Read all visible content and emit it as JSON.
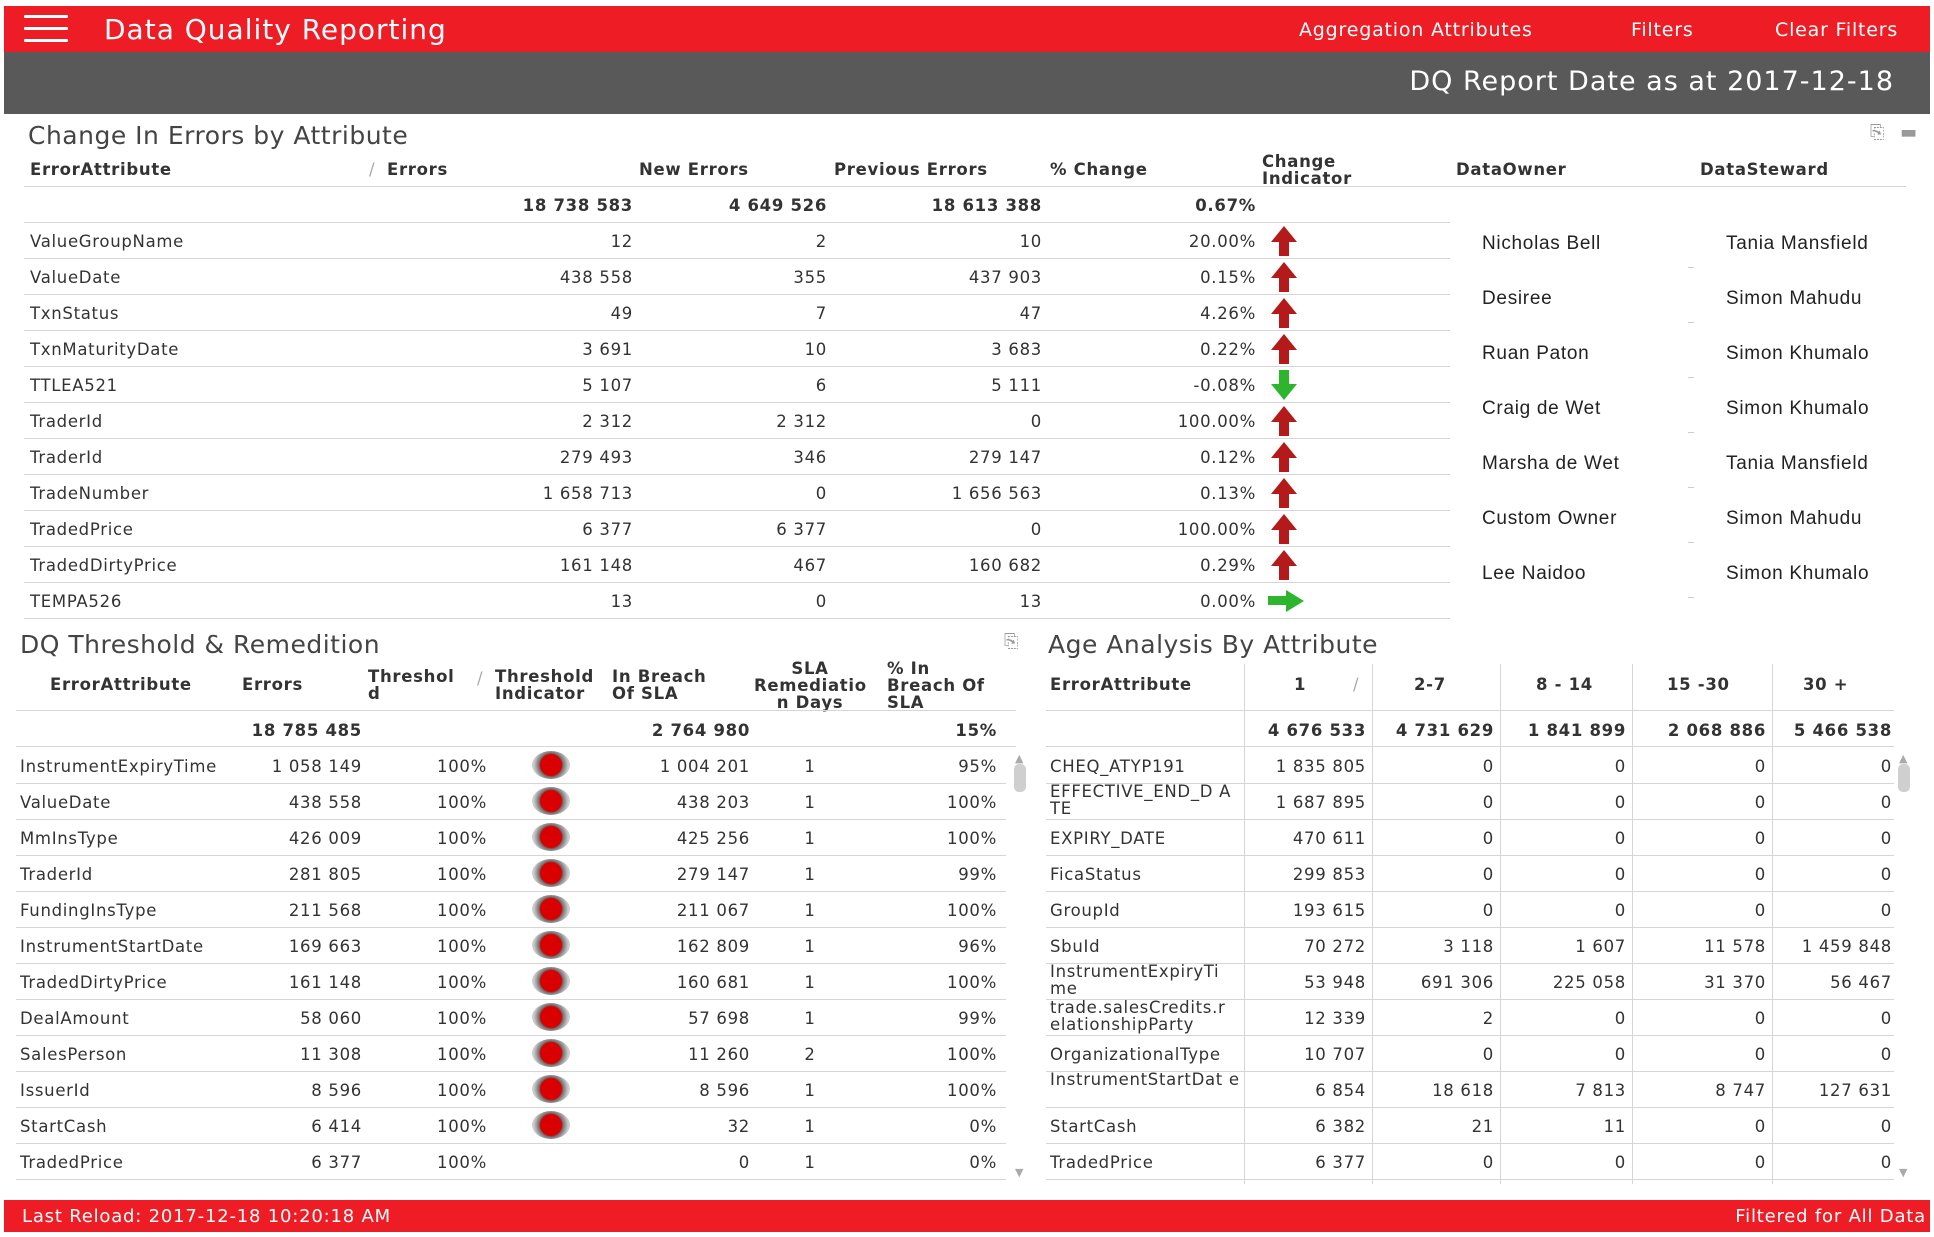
{
  "header": {
    "title": "Data Quality Reporting",
    "nav": [
      "Aggregation Attributes",
      "Filters",
      "Clear Filters"
    ],
    "report_date": "DQ Report Date as at 2017-12-18"
  },
  "change_panel": {
    "title": "Change In Errors by Attribute",
    "columns": [
      "ErrorAttribute",
      "Errors",
      "New Errors",
      "Previous Errors",
      "% Change",
      "Change Indicator",
      "DataOwner",
      "DataSteward"
    ],
    "totals": {
      "errors": "18 738 583",
      "new_errors": "4 649 526",
      "previous_errors": "18 613 388",
      "pct_change": "0.67%"
    },
    "rows": [
      {
        "attr": "ValueGroupName",
        "errors": "12",
        "new": "2",
        "prev": "10",
        "pct": "20.00%",
        "indicator": "up"
      },
      {
        "attr": "ValueDate",
        "errors": "438 558",
        "new": "355",
        "prev": "437 903",
        "pct": "0.15%",
        "indicator": "up"
      },
      {
        "attr": "TxnStatus",
        "errors": "49",
        "new": "7",
        "prev": "47",
        "pct": "4.26%",
        "indicator": "up"
      },
      {
        "attr": "TxnMaturityDate",
        "errors": "3 691",
        "new": "10",
        "prev": "3 683",
        "pct": "0.22%",
        "indicator": "up"
      },
      {
        "attr": "TTLEA521",
        "errors": "5 107",
        "new": "6",
        "prev": "5 111",
        "pct": "-0.08%",
        "indicator": "down"
      },
      {
        "attr": "TraderId",
        "errors": "2 312",
        "new": "2 312",
        "prev": "0",
        "pct": "100.00%",
        "indicator": "up"
      },
      {
        "attr": "TraderId",
        "errors": "279 493",
        "new": "346",
        "prev": "279 147",
        "pct": "0.12%",
        "indicator": "up"
      },
      {
        "attr": "TradeNumber",
        "errors": "1 658 713",
        "new": "0",
        "prev": "1 656 563",
        "pct": "0.13%",
        "indicator": "up"
      },
      {
        "attr": "TradedPrice",
        "errors": "6 377",
        "new": "6 377",
        "prev": "0",
        "pct": "100.00%",
        "indicator": "up"
      },
      {
        "attr": "TradedDirtyPrice",
        "errors": "161 148",
        "new": "467",
        "prev": "160 682",
        "pct": "0.29%",
        "indicator": "up"
      },
      {
        "attr": "TEMPA526",
        "errors": "13",
        "new": "0",
        "prev": "13",
        "pct": "0.00%",
        "indicator": "flat"
      }
    ],
    "owners": [
      {
        "owner": "Nicholas Bell",
        "steward": "Tania Mansfield"
      },
      {
        "owner": "Desiree",
        "steward": "Simon Mahudu"
      },
      {
        "owner": "Ruan Paton",
        "steward": "Simon Khumalo"
      },
      {
        "owner": "Craig de Wet",
        "steward": "Simon Khumalo"
      },
      {
        "owner": "Marsha de Wet",
        "steward": "Tania Mansfield"
      },
      {
        "owner": "Custom Owner",
        "steward": "Simon Mahudu"
      },
      {
        "owner": "Lee Naidoo",
        "steward": "Simon Khumalo"
      }
    ]
  },
  "threshold_panel": {
    "title": "DQ Threshold & Remedition",
    "columns": [
      "ErrorAttribute",
      "Errors",
      "Threshol d",
      "Threshold Indicator",
      "In Breach Of SLA",
      "SLA Remediatio n Days",
      "% In Breach Of SLA"
    ],
    "totals": {
      "errors": "18 785 485",
      "breach": "2 764 980",
      "pct": "15%"
    },
    "rows": [
      {
        "attr": "InstrumentExpiryTime",
        "errors": "1 058 149",
        "threshold": "100%",
        "breach": "1 004 201",
        "days": "1",
        "pct": "95%",
        "indicator": true
      },
      {
        "attr": "ValueDate",
        "errors": "438 558",
        "threshold": "100%",
        "breach": "438 203",
        "days": "1",
        "pct": "100%",
        "indicator": true
      },
      {
        "attr": "MmInsType",
        "errors": "426 009",
        "threshold": "100%",
        "breach": "425 256",
        "days": "1",
        "pct": "100%",
        "indicator": true
      },
      {
        "attr": "TraderId",
        "errors": "281 805",
        "threshold": "100%",
        "breach": "279 147",
        "days": "1",
        "pct": "99%",
        "indicator": true
      },
      {
        "attr": "FundingInsType",
        "errors": "211 568",
        "threshold": "100%",
        "breach": "211 067",
        "days": "1",
        "pct": "100%",
        "indicator": true
      },
      {
        "attr": "InstrumentStartDate",
        "errors": "169 663",
        "threshold": "100%",
        "breach": "162 809",
        "days": "1",
        "pct": "96%",
        "indicator": true
      },
      {
        "attr": "TradedDirtyPrice",
        "errors": "161 148",
        "threshold": "100%",
        "breach": "160 681",
        "days": "1",
        "pct": "100%",
        "indicator": true
      },
      {
        "attr": "DealAmount",
        "errors": "58 060",
        "threshold": "100%",
        "breach": "57 698",
        "days": "1",
        "pct": "99%",
        "indicator": true
      },
      {
        "attr": "SalesPerson",
        "errors": "11 308",
        "threshold": "100%",
        "breach": "11 260",
        "days": "2",
        "pct": "100%",
        "indicator": true
      },
      {
        "attr": "IssuerId",
        "errors": "8 596",
        "threshold": "100%",
        "breach": "8 596",
        "days": "1",
        "pct": "100%",
        "indicator": true
      },
      {
        "attr": "StartCash",
        "errors": "6 414",
        "threshold": "100%",
        "breach": "32",
        "days": "1",
        "pct": "0%",
        "indicator": true
      },
      {
        "attr": "TradedPrice",
        "errors": "6 377",
        "threshold": "100%",
        "breach": "0",
        "days": "1",
        "pct": "0%",
        "indicator": false
      }
    ]
  },
  "age_panel": {
    "title": "Age Analysis By Attribute",
    "columns": [
      "ErrorAttribute",
      "1",
      "2-7",
      "8 - 14",
      "15 -30",
      "30 +"
    ],
    "totals": [
      "4 676 533",
      "4 731 629",
      "1 841 899",
      "2 068 886",
      "5 466 538"
    ],
    "rows": [
      {
        "attr": "CHEQ_ATYP191",
        "v": [
          "1 835 805",
          "0",
          "0",
          "0",
          "0"
        ]
      },
      {
        "attr": "EFFECTIVE_END_D ATE",
        "v": [
          "1 687 895",
          "0",
          "0",
          "0",
          "0"
        ]
      },
      {
        "attr": "EXPIRY_DATE",
        "v": [
          "470 611",
          "0",
          "0",
          "0",
          "0"
        ]
      },
      {
        "attr": "FicaStatus",
        "v": [
          "299 853",
          "0",
          "0",
          "0",
          "0"
        ]
      },
      {
        "attr": "GroupId",
        "v": [
          "193 615",
          "0",
          "0",
          "0",
          "0"
        ]
      },
      {
        "attr": "SbuId",
        "v": [
          "70 272",
          "3 118",
          "1 607",
          "11 578",
          "1 459 848"
        ]
      },
      {
        "attr": "InstrumentExpiryTi me",
        "v": [
          "53 948",
          "691 306",
          "225 058",
          "31 370",
          "56 467"
        ]
      },
      {
        "attr": "trade.salesCredits.r elationshipParty",
        "v": [
          "12 339",
          "2",
          "0",
          "0",
          "0"
        ]
      },
      {
        "attr": "OrganizationalType",
        "v": [
          "10 707",
          "0",
          "0",
          "0",
          "0"
        ]
      },
      {
        "attr": "InstrumentStartDat e",
        "v": [
          "6 854",
          "18 618",
          "7 813",
          "8 747",
          "127 631"
        ]
      },
      {
        "attr": "StartCash",
        "v": [
          "6 382",
          "21",
          "11",
          "0",
          "0"
        ]
      },
      {
        "attr": "TradedPrice",
        "v": [
          "6 377",
          "0",
          "0",
          "0",
          "0"
        ]
      }
    ]
  },
  "footer": {
    "last_reload": "Last Reload: 2017-12-18 10:20:18 AM",
    "filter_status": "Filtered for All Data"
  }
}
